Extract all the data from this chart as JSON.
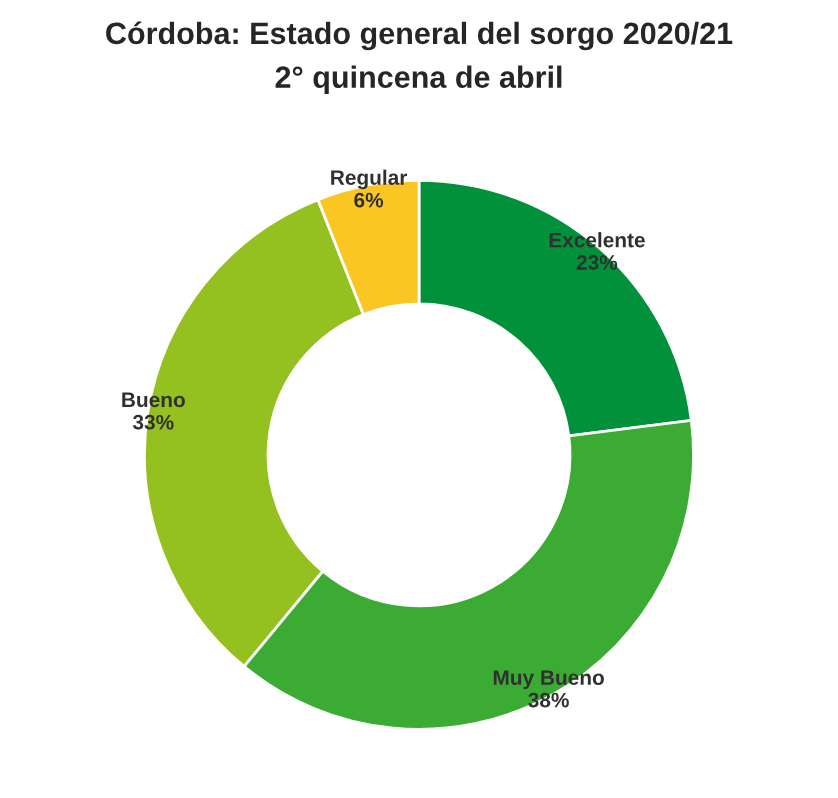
{
  "chart_data": {
    "type": "donut",
    "title": "Córdoba: Estado general del sorgo 2020/21",
    "subtitle": "2° quincena de abril",
    "categories": [
      "Excelente",
      "Muy Bueno",
      "Bueno",
      "Regular"
    ],
    "values": [
      23,
      38,
      33,
      6
    ],
    "colors": [
      "#00913a",
      "#3cab34",
      "#94c11f",
      "#f9c623"
    ],
    "value_labels": [
      "23%",
      "38%",
      "33%",
      "6%"
    ],
    "legend": false
  }
}
